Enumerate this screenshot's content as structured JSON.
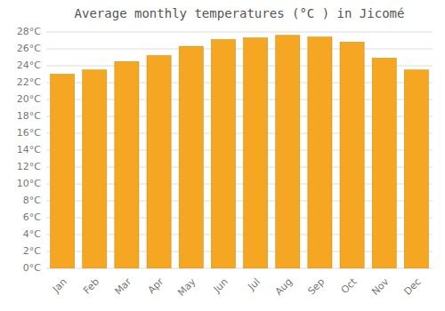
{
  "chart_data": {
    "type": "bar",
    "title": "Average monthly temperatures (°C ) in Jicomé",
    "categories": [
      "Jan",
      "Feb",
      "Mar",
      "Apr",
      "May",
      "Jun",
      "Jul",
      "Aug",
      "Sep",
      "Oct",
      "Nov",
      "Dec"
    ],
    "values": [
      23.0,
      23.5,
      24.5,
      25.2,
      26.3,
      27.1,
      27.3,
      27.6,
      27.4,
      26.8,
      24.9,
      23.5
    ],
    "color": "#F5A623",
    "ylim": [
      0,
      28
    ],
    "yticks": [
      {
        "value": 0,
        "label": "0°C"
      },
      {
        "value": 2,
        "label": "2°C"
      },
      {
        "value": 4,
        "label": "4°C"
      },
      {
        "value": 6,
        "label": "6°C"
      },
      {
        "value": 8,
        "label": "8°C"
      },
      {
        "value": 10,
        "label": "10°C"
      },
      {
        "value": 12,
        "label": "12°C"
      },
      {
        "value": 14,
        "label": "14°C"
      },
      {
        "value": 16,
        "label": "16°C"
      },
      {
        "value": 18,
        "label": "18°C"
      },
      {
        "value": 20,
        "label": "20°C"
      },
      {
        "value": 22,
        "label": "22°C"
      },
      {
        "value": 24,
        "label": "24°C"
      },
      {
        "value": 26,
        "label": "26°C"
      },
      {
        "value": 28,
        "label": "28°C"
      }
    ],
    "grid": true
  }
}
